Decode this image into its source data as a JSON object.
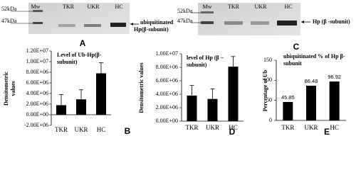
{
  "blots": [
    {
      "panel": "A",
      "mw": [
        "52kDa",
        "47kDa"
      ],
      "lanes": [
        "Mw",
        "TKR",
        "UKR",
        "HC"
      ],
      "annotation": [
        "ubiquitinated",
        "Hp(β-subunit)"
      ]
    },
    {
      "panel": "C",
      "mw": [
        "52kDa",
        "47kDa"
      ],
      "lanes": [
        "Mw",
        "TKR",
        "UKR",
        "HC"
      ],
      "annotation": [
        "Hp (β -subunit)"
      ]
    }
  ],
  "chart_data": [
    {
      "type": "bar",
      "panel": "B",
      "title": [
        "Level of Ub-Hp(β-",
        "subunit)"
      ],
      "ylabel": [
        "Densitometric",
        "values"
      ],
      "categories": [
        "TKR",
        "UKR",
        "HC"
      ],
      "values": [
        1800000,
        2900000,
        7800000
      ],
      "errors": [
        2000000,
        1800000,
        2000000
      ],
      "color": "#000000",
      "ylim": [
        -2000000,
        12000000
      ],
      "yticks": [
        {
          "value": -2000000,
          "label": "-2.00E+06"
        },
        {
          "value": 0,
          "label": "0.00E+00"
        },
        {
          "value": 2000000,
          "label": "2.00E+06"
        },
        {
          "value": 4000000,
          "label": "4.00E+06"
        },
        {
          "value": 6000000,
          "label": "6.00E+06"
        },
        {
          "value": 8000000,
          "label": "8.00E+06"
        },
        {
          "value": 10000000,
          "label": "1.00E+07"
        },
        {
          "value": 12000000,
          "label": "1.20E+07"
        }
      ]
    },
    {
      "type": "bar",
      "panel": "D",
      "title": [
        "level of Hp (β –",
        "subunit)"
      ],
      "ylabel": [
        "Densitometric values"
      ],
      "categories": [
        "TKR",
        "UKR",
        "HC"
      ],
      "values": [
        3800000,
        3300000,
        8100000
      ],
      "errors": [
        1500000,
        1500000,
        1500000
      ],
      "color": "#000000",
      "ylim": [
        0,
        10000000
      ],
      "yticks": [
        {
          "value": 0,
          "label": "0.00E+00"
        },
        {
          "value": 2000000,
          "label": "2.00E+06"
        },
        {
          "value": 4000000,
          "label": "4.00E+06"
        },
        {
          "value": 6000000,
          "label": "6.00E+06"
        },
        {
          "value": 8000000,
          "label": "8.00E+06"
        },
        {
          "value": 10000000,
          "label": "1.00E+07"
        }
      ]
    },
    {
      "type": "bar",
      "panel": "E",
      "title": [
        "ubiquitinated % of Hp β-",
        "subunit"
      ],
      "ylabel": [
        "Percentage of Ub"
      ],
      "categories": [
        "TKR",
        "UKR",
        "HC"
      ],
      "values": [
        45.85,
        86.48,
        96.92
      ],
      "value_labels": [
        "45.85",
        "86.48",
        "96.92"
      ],
      "color": "#000000",
      "ylim": [
        0,
        150
      ],
      "yticks": [
        0,
        50,
        100,
        150
      ]
    }
  ]
}
